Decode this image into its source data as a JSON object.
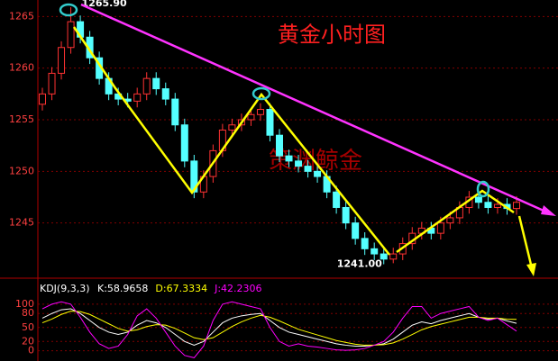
{
  "chart_data": [
    {
      "type": "candlestick",
      "title": "黄金小时图",
      "watermark": "策渊鲸金",
      "open": [
        1256.5,
        1257.5,
        1259.5,
        1262,
        1264.5,
        1263,
        1261,
        1259,
        1257.5,
        1257,
        1256.8,
        1257.5,
        1259,
        1258,
        1257,
        1254.5,
        1251,
        1248,
        1249.5,
        1252,
        1254,
        1254.5,
        1255,
        1255.5,
        1256,
        1253.5,
        1251.5,
        1251,
        1250.5,
        1250,
        1249.5,
        1248,
        1246.5,
        1245,
        1243.5,
        1242.5,
        1242,
        1241.5,
        1242,
        1243,
        1244,
        1244.5,
        1244,
        1245,
        1245.5,
        1246.5,
        1247.5,
        1247,
        1246.5,
        1246.8,
        1246.4
      ],
      "high": [
        1258.1,
        1260.1,
        1262.6,
        1265.9,
        1265.1,
        1263.6,
        1261.6,
        1259.6,
        1258.1,
        1257.6,
        1258.1,
        1259.6,
        1259.6,
        1258.6,
        1257.6,
        1255.1,
        1251.6,
        1250.1,
        1252.6,
        1254.6,
        1255.1,
        1255.6,
        1256.1,
        1256.6,
        1256.6,
        1254.1,
        1252.1,
        1251.6,
        1251.1,
        1250.6,
        1250.1,
        1248.6,
        1247.1,
        1245.6,
        1244.1,
        1243.1,
        1242.6,
        1242.6,
        1243.6,
        1244.6,
        1245.1,
        1245.1,
        1245.6,
        1246.1,
        1247.1,
        1248.1,
        1248.1,
        1247.6,
        1247.4,
        1247.4,
        1247.6
      ],
      "low": [
        1255.9,
        1256.9,
        1258.9,
        1261.4,
        1262.4,
        1260.4,
        1258.4,
        1256.9,
        1256.4,
        1256.2,
        1256.2,
        1256.9,
        1257.4,
        1256.4,
        1253.9,
        1250.4,
        1247.4,
        1247.4,
        1248.9,
        1251.4,
        1253.4,
        1253.9,
        1254.4,
        1254.9,
        1252.9,
        1250.9,
        1250.4,
        1249.9,
        1249.4,
        1248.9,
        1247.4,
        1245.9,
        1244.4,
        1242.9,
        1241.9,
        1241.4,
        1241,
        1241.1,
        1241.4,
        1242.4,
        1243.4,
        1243.4,
        1243.4,
        1244.4,
        1244.9,
        1245.9,
        1246.4,
        1245.9,
        1245.9,
        1245.8,
        1245.8
      ],
      "close": [
        1257.5,
        1259.5,
        1262,
        1264.5,
        1263,
        1261,
        1259,
        1257.5,
        1257,
        1256.8,
        1257.5,
        1259,
        1258,
        1257,
        1254.5,
        1251,
        1248,
        1249.5,
        1252,
        1254,
        1254.5,
        1255,
        1255.5,
        1256,
        1253.5,
        1251.5,
        1251,
        1250.5,
        1250,
        1249.5,
        1248,
        1246.5,
        1245,
        1243.5,
        1242.5,
        1242,
        1241.5,
        1242,
        1243,
        1244,
        1244.5,
        1244,
        1245,
        1245.5,
        1246.5,
        1247.5,
        1247,
        1246.5,
        1246.8,
        1246.4,
        1247
      ],
      "up_color": "#ff3232",
      "down_color": "#54ffff",
      "ylim": [
        1240,
        1266.6
      ],
      "yticks": [
        1245,
        1250,
        1255,
        1260,
        1265
      ],
      "annotations": [
        {
          "text": "1265.90",
          "index": 3,
          "value": 1265.9
        },
        {
          "text": "1241.00",
          "index": 36,
          "value": 1241
        }
      ]
    },
    {
      "type": "line",
      "title": "KDJ(9,3,3)",
      "ylim": [
        -20,
        150
      ],
      "yticks": [
        0,
        20,
        50,
        80,
        100
      ],
      "series": [
        {
          "name": "K",
          "label": "K:58.9658",
          "color": "#ffffff",
          "values": [
            70,
            80,
            88,
            90,
            80,
            65,
            50,
            40,
            35,
            40,
            55,
            65,
            60,
            50,
            35,
            20,
            12,
            20,
            40,
            60,
            70,
            75,
            78,
            80,
            65,
            50,
            40,
            35,
            30,
            25,
            20,
            15,
            12,
            10,
            10,
            12,
            15,
            25,
            40,
            55,
            62,
            58,
            65,
            70,
            75,
            80,
            72,
            68,
            70,
            64,
            58.9658
          ]
        },
        {
          "name": "D",
          "label": "D:67.3334",
          "color": "#ffff00",
          "values": [
            60,
            68,
            78,
            85,
            84,
            78,
            68,
            58,
            48,
            42,
            45,
            52,
            56,
            55,
            48,
            38,
            28,
            24,
            28,
            40,
            52,
            62,
            70,
            76,
            72,
            64,
            55,
            46,
            40,
            34,
            28,
            22,
            18,
            14,
            12,
            12,
            13,
            17,
            25,
            35,
            45,
            52,
            57,
            62,
            67,
            72,
            72,
            70,
            70,
            68,
            67.3334
          ]
        },
        {
          "name": "J",
          "label": "J:42.2306",
          "color": "#ff00ff",
          "values": [
            90,
            100,
            105,
            100,
            72,
            40,
            15,
            5,
            10,
            35,
            75,
            90,
            70,
            40,
            10,
            -10,
            -15,
            10,
            65,
            100,
            105,
            100,
            95,
            90,
            50,
            20,
            10,
            15,
            10,
            8,
            5,
            2,
            1,
            2,
            5,
            12,
            20,
            40,
            70,
            95,
            95,
            70,
            80,
            85,
            90,
            95,
            72,
            65,
            70,
            56,
            42.2306
          ]
        }
      ]
    }
  ]
}
